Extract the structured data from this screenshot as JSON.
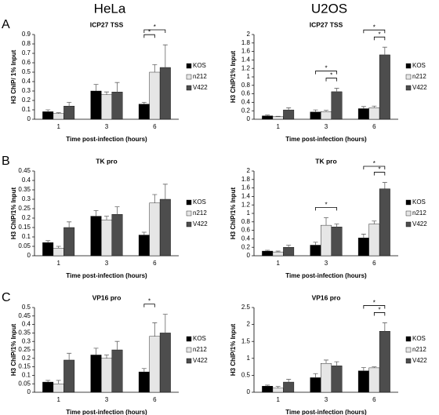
{
  "column_titles": [
    "HeLa",
    "U2OS"
  ],
  "panel_labels": [
    "A",
    "B",
    "C"
  ],
  "chart_data": [
    {
      "type": "bar",
      "title": "ICP27 TSS",
      "xlabel": "Time post-infection  (hours)",
      "ylabel": "H3 ChIP/ 1% Input",
      "categories": [
        "1",
        "3",
        "6"
      ],
      "ylim": [
        0,
        0.9
      ],
      "yticks": [
        0,
        0.1,
        0.2,
        0.3,
        0.4,
        0.5,
        0.6,
        0.7,
        0.8,
        0.9
      ],
      "series": [
        {
          "name": "KOS",
          "color": "#000000",
          "values": [
            0.08,
            0.3,
            0.16
          ],
          "errors": [
            0.02,
            0.07,
            0.02
          ]
        },
        {
          "name": "n212",
          "color": "#e6e6e6",
          "values": [
            0.06,
            0.26,
            0.5
          ],
          "errors": [
            0.01,
            0.03,
            0.08
          ]
        },
        {
          "name": "V422",
          "color": "#4d4d4d",
          "values": [
            0.14,
            0.29,
            0.55
          ],
          "errors": [
            0.04,
            0.1,
            0.24
          ]
        }
      ],
      "significance": [
        {
          "category": 2,
          "pair": [
            0,
            1
          ],
          "label": "*"
        },
        {
          "category": 2,
          "pair": [
            0,
            2
          ],
          "label": "*"
        }
      ]
    },
    {
      "type": "bar",
      "title": "ICP27 TSS",
      "xlabel": "Time post-infection  (hours)",
      "ylabel": "H3 ChIP/1% Input",
      "categories": [
        "1",
        "3",
        "6"
      ],
      "ylim": [
        0,
        2
      ],
      "yticks": [
        0,
        0.2,
        0.4,
        0.6,
        0.8,
        1,
        1.2,
        1.4,
        1.6,
        1.8,
        2
      ],
      "series": [
        {
          "name": "KOS",
          "color": "#000000",
          "values": [
            0.08,
            0.17,
            0.25
          ],
          "errors": [
            0.02,
            0.05,
            0.05
          ]
        },
        {
          "name": "n212",
          "color": "#e6e6e6",
          "values": [
            0.06,
            0.18,
            0.27
          ],
          "errors": [
            0.01,
            0.03,
            0.04
          ]
        },
        {
          "name": "V422",
          "color": "#4d4d4d",
          "values": [
            0.22,
            0.65,
            1.52
          ],
          "errors": [
            0.05,
            0.08,
            0.18
          ]
        }
      ],
      "significance": [
        {
          "category": 1,
          "pair": [
            1,
            2
          ],
          "label": "*"
        },
        {
          "category": 1,
          "pair": [
            0,
            2
          ],
          "label": "*"
        },
        {
          "category": 2,
          "pair": [
            1,
            2
          ],
          "label": "*"
        },
        {
          "category": 2,
          "pair": [
            0,
            2
          ],
          "label": "*"
        }
      ]
    },
    {
      "type": "bar",
      "title": "TK pro",
      "xlabel": "Time post-infection  (hours)",
      "ylabel": "H3 ChIP/1% Input",
      "categories": [
        "1",
        "3",
        "6"
      ],
      "ylim": [
        0,
        0.45
      ],
      "yticks": [
        0,
        0.05,
        0.1,
        0.15,
        0.2,
        0.25,
        0.3,
        0.35,
        0.4,
        0.45
      ],
      "series": [
        {
          "name": "KOS",
          "color": "#000000",
          "values": [
            0.07,
            0.21,
            0.11
          ],
          "errors": [
            0.01,
            0.03,
            0.015
          ]
        },
        {
          "name": "n212",
          "color": "#e6e6e6",
          "values": [
            0.04,
            0.19,
            0.28
          ],
          "errors": [
            0.01,
            0.02,
            0.045
          ]
        },
        {
          "name": "V422",
          "color": "#4d4d4d",
          "values": [
            0.15,
            0.22,
            0.3
          ],
          "errors": [
            0.03,
            0.04,
            0.08
          ]
        }
      ],
      "significance": []
    },
    {
      "type": "bar",
      "title": "TK pro",
      "xlabel": "Time post-infection  (hours)",
      "ylabel": "H3 ChIP/1% Input",
      "categories": [
        "1",
        "3",
        "6"
      ],
      "ylim": [
        0,
        2
      ],
      "yticks": [
        0,
        0.2,
        0.4,
        0.6,
        0.8,
        1,
        1.2,
        1.4,
        1.6,
        1.8,
        2
      ],
      "series": [
        {
          "name": "KOS",
          "color": "#000000",
          "values": [
            0.11,
            0.25,
            0.42
          ],
          "errors": [
            0.02,
            0.07,
            0.09
          ]
        },
        {
          "name": "n212",
          "color": "#e6e6e6",
          "values": [
            0.09,
            0.72,
            0.75
          ],
          "errors": [
            0.02,
            0.18,
            0.07
          ]
        },
        {
          "name": "V422",
          "color": "#4d4d4d",
          "values": [
            0.2,
            0.68,
            1.58
          ],
          "errors": [
            0.05,
            0.07,
            0.15
          ]
        }
      ],
      "significance": [
        {
          "category": 1,
          "pair": [
            0,
            2
          ],
          "label": "*"
        },
        {
          "category": 2,
          "pair": [
            1,
            2
          ],
          "label": "*"
        },
        {
          "category": 2,
          "pair": [
            0,
            2
          ],
          "label": "*"
        }
      ]
    },
    {
      "type": "bar",
      "title": "VP16 pro",
      "xlabel": "Time post-infection  (hours)",
      "ylabel": "H3 ChIP/1% Input",
      "categories": [
        "1",
        "3",
        "6"
      ],
      "ylim": [
        0,
        0.5
      ],
      "yticks": [
        0,
        0.05,
        0.1,
        0.15,
        0.2,
        0.25,
        0.3,
        0.35,
        0.4,
        0.45,
        0.5
      ],
      "series": [
        {
          "name": "KOS",
          "color": "#000000",
          "values": [
            0.06,
            0.22,
            0.12
          ],
          "errors": [
            0.01,
            0.04,
            0.02
          ]
        },
        {
          "name": "n212",
          "color": "#e6e6e6",
          "values": [
            0.05,
            0.2,
            0.33
          ],
          "errors": [
            0.02,
            0.02,
            0.08
          ]
        },
        {
          "name": "V422",
          "color": "#4d4d4d",
          "values": [
            0.19,
            0.25,
            0.35
          ],
          "errors": [
            0.04,
            0.05,
            0.11
          ]
        }
      ],
      "significance": [
        {
          "category": 2,
          "pair": [
            0,
            1
          ],
          "label": "*"
        }
      ]
    },
    {
      "type": "bar",
      "title": "VP16 pro",
      "xlabel": "Time post-infection  (hours)",
      "ylabel": "H3 ChIP/1% Input",
      "categories": [
        "1",
        "3",
        "6"
      ],
      "ylim": [
        0,
        2.5
      ],
      "yticks": [
        0,
        0.5,
        1,
        1.5,
        2,
        2.5
      ],
      "series": [
        {
          "name": "KOS",
          "color": "#000000",
          "values": [
            0.18,
            0.43,
            0.63
          ],
          "errors": [
            0.03,
            0.12,
            0.1
          ]
        },
        {
          "name": "n212",
          "color": "#e6e6e6",
          "values": [
            0.12,
            0.85,
            0.72
          ],
          "errors": [
            0.05,
            0.1,
            0.03
          ]
        },
        {
          "name": "V422",
          "color": "#4d4d4d",
          "values": [
            0.3,
            0.78,
            1.8
          ],
          "errors": [
            0.08,
            0.12,
            0.25
          ]
        }
      ],
      "significance": [
        {
          "category": 2,
          "pair": [
            1,
            2
          ],
          "label": "*"
        },
        {
          "category": 2,
          "pair": [
            0,
            2
          ],
          "label": "*"
        }
      ]
    }
  ]
}
